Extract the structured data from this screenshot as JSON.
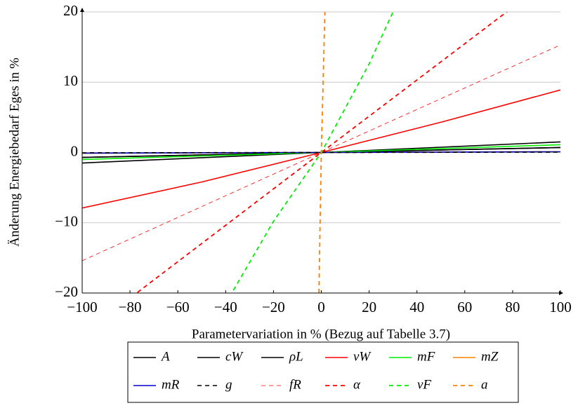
{
  "chart_data": {
    "type": "line",
    "xlabel": "Parametervariation in % (Bezug auf Tabelle 3.7)",
    "ylabel": "Änderung Energiebedarf Eges in %",
    "xlim": [
      -100,
      100
    ],
    "ylim": [
      -20,
      20
    ],
    "xticks": [
      {
        "value": -100,
        "label": "−100"
      },
      {
        "value": -80,
        "label": "−80"
      },
      {
        "value": -60,
        "label": "−60"
      },
      {
        "value": -40,
        "label": "−40"
      },
      {
        "value": -20,
        "label": "−20"
      },
      0,
      20,
      40,
      60,
      80,
      100
    ],
    "yticks": [
      {
        "value": -20,
        "label": "−20"
      },
      {
        "value": -10,
        "label": "−10"
      },
      0,
      10,
      20
    ],
    "grid": true,
    "series": [
      {
        "name": "A",
        "color": "#000000",
        "dash": false,
        "linewidth": 1.6,
        "x": [
          -100,
          0,
          100
        ],
        "values": [
          -1.5,
          0,
          1.5
        ]
      },
      {
        "name": "cW",
        "color": "#000000",
        "dash": false,
        "linewidth": 1.6,
        "x": [
          -100,
          0,
          100
        ],
        "values": [
          -0.7,
          0,
          0.7
        ]
      },
      {
        "name": "ρL",
        "color": "#000000",
        "dash": false,
        "linewidth": 1.6,
        "x": [
          -100,
          0,
          100
        ],
        "values": [
          -0.7,
          0,
          0.7
        ]
      },
      {
        "name": "vW",
        "color": "#ff0000",
        "dash": false,
        "linewidth": 1.6,
        "x": [
          -100,
          -50,
          0,
          50,
          100
        ],
        "values": [
          -7.9,
          -4.2,
          0,
          4.3,
          8.9
        ]
      },
      {
        "name": "mF",
        "color": "#00ee00",
        "dash": false,
        "linewidth": 1.6,
        "x": [
          -100,
          0,
          100
        ],
        "values": [
          -1.0,
          0,
          1.1
        ]
      },
      {
        "name": "mZ",
        "color": "#ff8000",
        "dash": false,
        "linewidth": 1.6,
        "x": [
          -100,
          0,
          100
        ],
        "values": [
          -0.1,
          0,
          0.1
        ]
      },
      {
        "name": "mR",
        "color": "#0000cc",
        "dash": false,
        "linewidth": 1.6,
        "x": [
          -100,
          0,
          100
        ],
        "values": [
          -0.1,
          0,
          0.1
        ]
      },
      {
        "name": "g",
        "color": "#000000",
        "dash": true,
        "linewidth": 1.6,
        "x": [
          -100,
          0,
          100
        ],
        "values": [
          -0.05,
          0,
          0.05
        ]
      },
      {
        "name": "fR",
        "color": "#ff0000",
        "dash": true,
        "linewidth": 0.8,
        "x": [
          -100,
          0,
          100
        ],
        "values": [
          -15.4,
          0,
          15.3
        ]
      },
      {
        "name": "α",
        "color": "#ff0000",
        "dash": true,
        "linewidth": 1.8,
        "x": [
          -100,
          0,
          100
        ],
        "values": [
          -25.9,
          0,
          25.8
        ]
      },
      {
        "name": "vF",
        "color": "#00ee00",
        "dash": true,
        "linewidth": 1.8,
        "x": [
          -40,
          -20,
          0,
          20,
          30
        ],
        "values": [
          -21.5,
          -9.8,
          0,
          12.6,
          20
        ]
      },
      {
        "name": "a",
        "color": "#ff8000",
        "dash": true,
        "linewidth": 1.8,
        "x": [
          -1,
          0,
          1.5
        ],
        "values": [
          -20,
          0,
          20
        ]
      }
    ]
  }
}
